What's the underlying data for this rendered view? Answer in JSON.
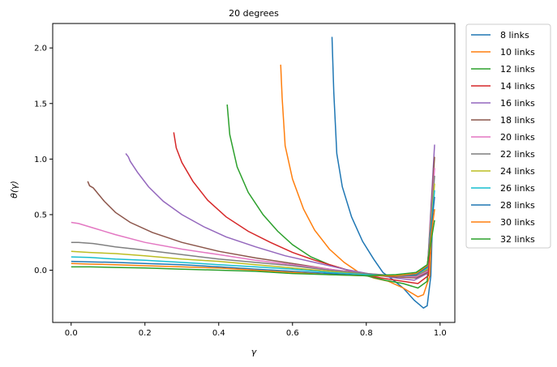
{
  "chart_data": {
    "type": "line",
    "title": "20 degrees",
    "xlabel": "γ",
    "ylabel": "θ(γ)",
    "xlim": [
      -0.05,
      1.04
    ],
    "ylim": [
      -0.47,
      2.22
    ],
    "xticks": [
      "0.0",
      "0.2",
      "0.4",
      "0.6",
      "0.8",
      "1.0"
    ],
    "yticks": [
      "0.0",
      "0.5",
      "1.0",
      "1.5",
      "2.0"
    ],
    "grid": false,
    "legend_position": "outside-right",
    "series": [
      {
        "name": "8 links",
        "color": "#1f77b4",
        "points": [
          [
            0.707,
            2.1
          ],
          [
            0.712,
            1.6
          ],
          [
            0.72,
            1.05
          ],
          [
            0.735,
            0.75
          ],
          [
            0.76,
            0.48
          ],
          [
            0.79,
            0.26
          ],
          [
            0.82,
            0.1
          ],
          [
            0.845,
            -0.02
          ],
          [
            0.87,
            -0.08
          ],
          [
            0.9,
            -0.16
          ],
          [
            0.93,
            -0.27
          ],
          [
            0.955,
            -0.34
          ],
          [
            0.965,
            -0.32
          ],
          [
            0.975,
            -0.05
          ],
          [
            0.982,
            0.72
          ]
        ]
      },
      {
        "name": "10 links",
        "color": "#ff7f0e",
        "points": [
          [
            0.568,
            1.85
          ],
          [
            0.572,
            1.55
          ],
          [
            0.58,
            1.12
          ],
          [
            0.6,
            0.82
          ],
          [
            0.63,
            0.55
          ],
          [
            0.66,
            0.36
          ],
          [
            0.7,
            0.19
          ],
          [
            0.74,
            0.07
          ],
          [
            0.78,
            -0.02
          ],
          [
            0.82,
            -0.07
          ],
          [
            0.86,
            -0.1
          ],
          [
            0.9,
            -0.16
          ],
          [
            0.94,
            -0.24
          ],
          [
            0.955,
            -0.22
          ],
          [
            0.972,
            -0.05
          ],
          [
            0.983,
            0.85
          ]
        ]
      },
      {
        "name": "12 links",
        "color": "#2ca02c",
        "points": [
          [
            0.423,
            1.49
          ],
          [
            0.43,
            1.22
          ],
          [
            0.45,
            0.93
          ],
          [
            0.48,
            0.7
          ],
          [
            0.52,
            0.5
          ],
          [
            0.56,
            0.35
          ],
          [
            0.6,
            0.23
          ],
          [
            0.65,
            0.12
          ],
          [
            0.7,
            0.05
          ],
          [
            0.75,
            0.0
          ],
          [
            0.8,
            -0.05
          ],
          [
            0.85,
            -0.09
          ],
          [
            0.9,
            -0.12
          ],
          [
            0.94,
            -0.16
          ],
          [
            0.965,
            -0.1
          ],
          [
            0.983,
            0.88
          ]
        ]
      },
      {
        "name": "14 links",
        "color": "#d62728",
        "points": [
          [
            0.278,
            1.24
          ],
          [
            0.285,
            1.1
          ],
          [
            0.3,
            0.97
          ],
          [
            0.33,
            0.8
          ],
          [
            0.37,
            0.63
          ],
          [
            0.42,
            0.48
          ],
          [
            0.48,
            0.35
          ],
          [
            0.54,
            0.25
          ],
          [
            0.6,
            0.16
          ],
          [
            0.66,
            0.09
          ],
          [
            0.72,
            0.03
          ],
          [
            0.78,
            -0.03
          ],
          [
            0.84,
            -0.07
          ],
          [
            0.9,
            -0.1
          ],
          [
            0.94,
            -0.12
          ],
          [
            0.968,
            -0.05
          ],
          [
            0.983,
            0.88
          ]
        ]
      },
      {
        "name": "16 links",
        "color": "#9467bd",
        "points": [
          [
            0.148,
            1.05
          ],
          [
            0.155,
            1.02
          ],
          [
            0.16,
            0.98
          ],
          [
            0.18,
            0.88
          ],
          [
            0.21,
            0.75
          ],
          [
            0.25,
            0.62
          ],
          [
            0.3,
            0.5
          ],
          [
            0.36,
            0.39
          ],
          [
            0.42,
            0.3
          ],
          [
            0.5,
            0.21
          ],
          [
            0.58,
            0.13
          ],
          [
            0.66,
            0.07
          ],
          [
            0.74,
            0.01
          ],
          [
            0.82,
            -0.04
          ],
          [
            0.88,
            -0.07
          ],
          [
            0.93,
            -0.09
          ],
          [
            0.965,
            -0.03
          ],
          [
            0.985,
            1.13
          ]
        ]
      },
      {
        "name": "18 links",
        "color": "#8c564b",
        "points": [
          [
            0.045,
            0.8
          ],
          [
            0.05,
            0.76
          ],
          [
            0.06,
            0.74
          ],
          [
            0.07,
            0.7
          ],
          [
            0.09,
            0.62
          ],
          [
            0.12,
            0.52
          ],
          [
            0.16,
            0.43
          ],
          [
            0.22,
            0.34
          ],
          [
            0.3,
            0.25
          ],
          [
            0.4,
            0.17
          ],
          [
            0.5,
            0.11
          ],
          [
            0.6,
            0.06
          ],
          [
            0.7,
            0.01
          ],
          [
            0.8,
            -0.04
          ],
          [
            0.88,
            -0.06
          ],
          [
            0.935,
            -0.07
          ],
          [
            0.965,
            -0.02
          ],
          [
            0.985,
            1.02
          ]
        ]
      },
      {
        "name": "20 links",
        "color": "#e377c2",
        "points": [
          [
            0.0,
            0.43
          ],
          [
            0.02,
            0.42
          ],
          [
            0.06,
            0.38
          ],
          [
            0.12,
            0.32
          ],
          [
            0.2,
            0.25
          ],
          [
            0.3,
            0.19
          ],
          [
            0.4,
            0.14
          ],
          [
            0.5,
            0.09
          ],
          [
            0.6,
            0.05
          ],
          [
            0.7,
            0.01
          ],
          [
            0.8,
            -0.03
          ],
          [
            0.88,
            -0.05
          ],
          [
            0.935,
            -0.06
          ],
          [
            0.965,
            -0.01
          ],
          [
            0.985,
            0.92
          ]
        ]
      },
      {
        "name": "22 links",
        "color": "#7f7f7f",
        "points": [
          [
            0.0,
            0.25
          ],
          [
            0.02,
            0.25
          ],
          [
            0.06,
            0.24
          ],
          [
            0.12,
            0.21
          ],
          [
            0.2,
            0.18
          ],
          [
            0.3,
            0.14
          ],
          [
            0.4,
            0.1
          ],
          [
            0.5,
            0.07
          ],
          [
            0.6,
            0.04
          ],
          [
            0.7,
            0.0
          ],
          [
            0.8,
            -0.03
          ],
          [
            0.88,
            -0.05
          ],
          [
            0.935,
            -0.05
          ],
          [
            0.965,
            0.0
          ],
          [
            0.985,
            0.85
          ]
        ]
      },
      {
        "name": "24 links",
        "color": "#bcbd22",
        "points": [
          [
            0.0,
            0.17
          ],
          [
            0.05,
            0.16
          ],
          [
            0.12,
            0.15
          ],
          [
            0.2,
            0.13
          ],
          [
            0.3,
            0.1
          ],
          [
            0.4,
            0.08
          ],
          [
            0.5,
            0.05
          ],
          [
            0.6,
            0.02
          ],
          [
            0.7,
            -0.01
          ],
          [
            0.8,
            -0.04
          ],
          [
            0.88,
            -0.05
          ],
          [
            0.935,
            -0.04
          ],
          [
            0.965,
            0.01
          ],
          [
            0.985,
            0.78
          ]
        ]
      },
      {
        "name": "26 links",
        "color": "#17becf",
        "points": [
          [
            0.0,
            0.12
          ],
          [
            0.05,
            0.115
          ],
          [
            0.12,
            0.1
          ],
          [
            0.2,
            0.09
          ],
          [
            0.3,
            0.07
          ],
          [
            0.4,
            0.05
          ],
          [
            0.5,
            0.03
          ],
          [
            0.6,
            0.01
          ],
          [
            0.7,
            -0.02
          ],
          [
            0.8,
            -0.04
          ],
          [
            0.88,
            -0.05
          ],
          [
            0.935,
            -0.04
          ],
          [
            0.965,
            0.02
          ],
          [
            0.985,
            0.72
          ]
        ]
      },
      {
        "name": "28 links",
        "color": "#1f77b4",
        "points": [
          [
            0.0,
            0.08
          ],
          [
            0.05,
            0.075
          ],
          [
            0.12,
            0.07
          ],
          [
            0.2,
            0.06
          ],
          [
            0.3,
            0.05
          ],
          [
            0.4,
            0.03
          ],
          [
            0.5,
            0.01
          ],
          [
            0.6,
            -0.01
          ],
          [
            0.7,
            -0.03
          ],
          [
            0.8,
            -0.05
          ],
          [
            0.88,
            -0.05
          ],
          [
            0.935,
            -0.04
          ],
          [
            0.965,
            0.03
          ],
          [
            0.985,
            0.66
          ]
        ]
      },
      {
        "name": "30 links",
        "color": "#ff7f0e",
        "points": [
          [
            0.0,
            0.06
          ],
          [
            0.05,
            0.055
          ],
          [
            0.12,
            0.05
          ],
          [
            0.2,
            0.04
          ],
          [
            0.3,
            0.03
          ],
          [
            0.4,
            0.02
          ],
          [
            0.5,
            0.0
          ],
          [
            0.6,
            -0.02
          ],
          [
            0.7,
            -0.04
          ],
          [
            0.8,
            -0.05
          ],
          [
            0.88,
            -0.05
          ],
          [
            0.935,
            -0.03
          ],
          [
            0.965,
            0.04
          ],
          [
            0.985,
            0.55
          ]
        ]
      },
      {
        "name": "32 links",
        "color": "#2ca02c",
        "points": [
          [
            0.0,
            0.03
          ],
          [
            0.05,
            0.03
          ],
          [
            0.12,
            0.025
          ],
          [
            0.2,
            0.02
          ],
          [
            0.3,
            0.01
          ],
          [
            0.4,
            0.0
          ],
          [
            0.5,
            -0.01
          ],
          [
            0.6,
            -0.03
          ],
          [
            0.7,
            -0.04
          ],
          [
            0.8,
            -0.05
          ],
          [
            0.88,
            -0.04
          ],
          [
            0.935,
            -0.02
          ],
          [
            0.965,
            0.05
          ],
          [
            0.985,
            0.45
          ]
        ]
      }
    ]
  }
}
